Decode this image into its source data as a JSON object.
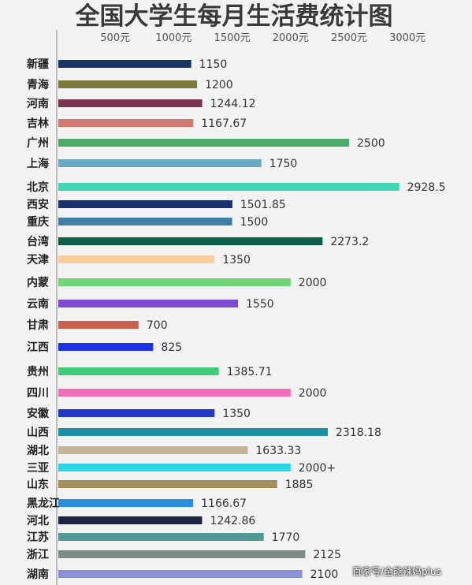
{
  "chart_data": {
    "type": "bar",
    "orientation": "horizontal",
    "title": "全国大学生每月生活费统计图",
    "xticks": [
      {
        "value": 500,
        "label": "500元"
      },
      {
        "value": 1000,
        "label": "1000元"
      },
      {
        "value": 1500,
        "label": "1500元"
      },
      {
        "value": 2000,
        "label": "2000元"
      },
      {
        "value": 2500,
        "label": "2500元"
      },
      {
        "value": 3000,
        "label": "3000元"
      }
    ],
    "xlim": [
      0,
      3000
    ],
    "categories": [
      "新疆",
      "青海",
      "河南",
      "吉林",
      "广州",
      "上海",
      "北京",
      "西安",
      "重庆",
      "台湾",
      "天津",
      "内蒙",
      "云南",
      "甘肃",
      "江西",
      "贵州",
      "四川",
      "安徽",
      "山西",
      "湖北",
      "三亚",
      "山东",
      "黑龙江",
      "河北",
      "江苏",
      "浙江",
      "湖南"
    ],
    "values": [
      1150,
      1200,
      1244.12,
      1167.67,
      2500,
      1750,
      2928.5,
      1501.85,
      1500,
      2273.2,
      1350,
      2000,
      1550,
      700,
      825,
      1385.71,
      2000,
      1350,
      2318.18,
      1633.33,
      2000,
      1885,
      1166.67,
      1242.86,
      1770,
      2125,
      2100
    ],
    "value_labels": [
      "1150",
      "1200",
      "1244.12",
      "1167.67",
      "2500",
      "1750",
      "2928.5",
      "1501.85",
      "1500",
      "2273.2",
      "1350",
      "2000",
      "1550",
      "700",
      "825",
      "1385.71",
      "2000",
      "1350",
      "2318.18",
      "1633.33",
      "2000+",
      "1885",
      "1166.67",
      "1242.86",
      "1770",
      "2125",
      "2100"
    ],
    "colors": [
      "#1d3461",
      "#7a7a3a",
      "#7a3551",
      "#d27a72",
      "#4cab6b",
      "#6aa8c0",
      "#3fd6b3",
      "#1c2e6e",
      "#3f7fa6",
      "#0f5e48",
      "#f7cf9e",
      "#6fd47a",
      "#7d4bd1",
      "#c9604f",
      "#1e2fe3",
      "#3fcc7a",
      "#ee6fb6",
      "#2437c7",
      "#1d8fa8",
      "#c2b49a",
      "#2ad7e3",
      "#a3905c",
      "#2b8fe0",
      "#1e2440",
      "#4f9a93",
      "#7c8a86",
      "#8b90d6"
    ],
    "grid": false,
    "legend": "none"
  },
  "watermark": "百家号/全能辣妈plus"
}
